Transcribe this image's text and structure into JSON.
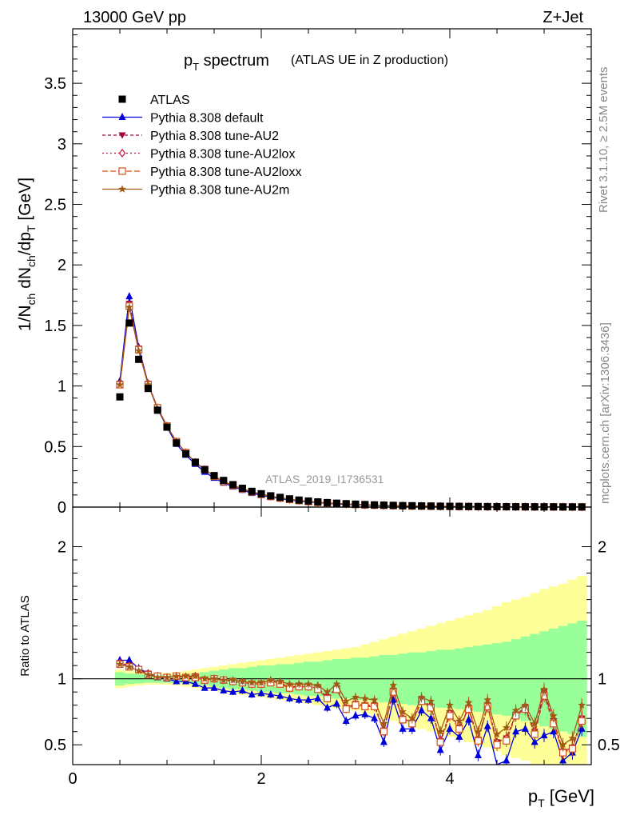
{
  "header": {
    "beam": "13000 GeV pp",
    "process": "Z+Jet"
  },
  "side_labels": {
    "rivet": "Rivet 3.1.10, ≥ 2.5M events",
    "mcplots": "mcplots.cern.ch [arXiv:1306.3436]"
  },
  "chart_data": [
    {
      "type": "line",
      "title": "p_T spectrum",
      "title_main": "p",
      "title_sub": "T",
      "title_rest": " spectrum",
      "title_note": "(ATLAS UE in Z production)",
      "ylabel": "1/N_ch dN_ch/dp_T [GeV]",
      "xlabel": "p_T [GeV]",
      "watermark": "ATLAS_2019_I1736531",
      "xlim": [
        0,
        5.5
      ],
      "ylim": [
        0,
        3.95
      ],
      "yticks": [
        0,
        0.5,
        1,
        1.5,
        2,
        2.5,
        3,
        3.5
      ],
      "ytick_labels": [
        "0",
        "0.5",
        "1",
        "1.5",
        "2",
        "2.5",
        "3",
        "3.5"
      ],
      "x": [
        0.5,
        0.6,
        0.7,
        0.8,
        0.9,
        1.0,
        1.1,
        1.2,
        1.3,
        1.4,
        1.5,
        1.6,
        1.7,
        1.8,
        1.9,
        2.0,
        2.1,
        2.2,
        2.3,
        2.4,
        2.5,
        2.6,
        2.7,
        2.8,
        2.9,
        3.0,
        3.1,
        3.2,
        3.3,
        3.4,
        3.5,
        3.6,
        3.7,
        3.8,
        3.9,
        4.0,
        4.1,
        4.2,
        4.3,
        4.4,
        4.5,
        4.6,
        4.7,
        4.8,
        4.9,
        5.0,
        5.1,
        5.2,
        5.3,
        5.4
      ],
      "series": [
        {
          "name": "ATLAS",
          "marker": "square",
          "color": "#000000",
          "values": [
            0.91,
            1.52,
            1.22,
            0.98,
            0.8,
            0.66,
            0.53,
            0.44,
            0.37,
            0.31,
            0.26,
            0.22,
            0.185,
            0.155,
            0.13,
            0.11,
            0.093,
            0.08,
            0.068,
            0.058,
            0.05,
            0.043,
            0.037,
            0.032,
            0.028,
            0.024,
            0.021,
            0.018,
            0.016,
            0.014,
            0.012,
            0.011,
            0.0095,
            0.0083,
            0.0073,
            0.0064,
            0.0056,
            0.0049,
            0.0043,
            0.0038,
            0.0034,
            0.003,
            0.0027,
            0.0024,
            0.0021,
            0.0019,
            0.0017,
            0.0015,
            0.0013,
            0.0012
          ]
        },
        {
          "name": "Pythia 8.308 default",
          "marker": "triangle-up",
          "color": "#0000dd",
          "dash": "",
          "values": [
            1.04,
            1.74,
            1.32,
            1.02,
            0.81,
            0.66,
            0.52,
            0.43,
            0.355,
            0.29,
            0.24,
            0.2,
            0.168,
            0.14,
            0.115,
            0.098,
            0.082,
            0.07,
            0.058,
            0.049,
            0.042,
            0.036,
            0.031,
            0.026,
            0.022,
            0.019,
            0.016,
            0.014,
            0.012,
            0.01,
            0.009,
            0.008,
            0.007,
            0.006,
            0.005,
            0.0045,
            0.004,
            0.0035,
            0.003,
            0.0027,
            0.0023,
            0.002,
            0.0018,
            0.0016,
            0.0014,
            0.0012,
            0.0011,
            0.001,
            0.0009,
            0.0008
          ]
        },
        {
          "name": "Pythia 8.308 tune-AU2",
          "marker": "triangle-down",
          "color": "#a0003c",
          "dash": "4,3",
          "values": [
            1.02,
            1.68,
            1.31,
            1.02,
            0.82,
            0.67,
            0.54,
            0.45,
            0.37,
            0.31,
            0.255,
            0.21,
            0.178,
            0.15,
            0.125,
            0.105,
            0.088,
            0.075,
            0.063,
            0.054,
            0.046,
            0.039,
            0.034,
            0.029,
            0.025,
            0.021,
            0.018,
            0.016,
            0.014,
            0.012,
            0.01,
            0.009,
            0.008,
            0.007,
            0.006,
            0.005,
            0.0045,
            0.004,
            0.0035,
            0.003,
            0.0027,
            0.0024,
            0.0021,
            0.0018,
            0.0016,
            0.0014,
            0.0013,
            0.0011,
            0.001,
            0.0009
          ]
        },
        {
          "name": "Pythia 8.308 tune-AU2lox",
          "marker": "diamond-open",
          "color": "#c0143c",
          "dash": "2,3",
          "values": [
            1.02,
            1.67,
            1.31,
            1.02,
            0.82,
            0.67,
            0.54,
            0.45,
            0.37,
            0.31,
            0.255,
            0.21,
            0.178,
            0.15,
            0.125,
            0.105,
            0.088,
            0.075,
            0.063,
            0.054,
            0.046,
            0.039,
            0.034,
            0.029,
            0.025,
            0.021,
            0.018,
            0.016,
            0.014,
            0.012,
            0.01,
            0.009,
            0.008,
            0.007,
            0.006,
            0.005,
            0.0045,
            0.004,
            0.0035,
            0.003,
            0.0027,
            0.0024,
            0.0021,
            0.0018,
            0.0016,
            0.0014,
            0.0013,
            0.0011,
            0.001,
            0.0009
          ]
        },
        {
          "name": "Pythia 8.308 tune-AU2loxx",
          "marker": "square-open",
          "color": "#d2501e",
          "dash": "7,3",
          "values": [
            1.01,
            1.66,
            1.3,
            1.01,
            0.82,
            0.67,
            0.54,
            0.45,
            0.37,
            0.31,
            0.255,
            0.21,
            0.178,
            0.15,
            0.125,
            0.105,
            0.088,
            0.075,
            0.063,
            0.054,
            0.046,
            0.039,
            0.034,
            0.029,
            0.025,
            0.021,
            0.018,
            0.016,
            0.014,
            0.012,
            0.01,
            0.009,
            0.008,
            0.007,
            0.006,
            0.005,
            0.0045,
            0.004,
            0.0035,
            0.003,
            0.0027,
            0.0024,
            0.0021,
            0.0018,
            0.0016,
            0.0014,
            0.0013,
            0.0011,
            0.001,
            0.0009
          ]
        },
        {
          "name": "Pythia 8.308 tune-AU2m",
          "marker": "star",
          "color": "#a05a14",
          "dash": "",
          "values": [
            1.01,
            1.65,
            1.29,
            1.01,
            0.81,
            0.67,
            0.54,
            0.45,
            0.37,
            0.31,
            0.256,
            0.212,
            0.18,
            0.152,
            0.127,
            0.107,
            0.09,
            0.077,
            0.065,
            0.055,
            0.047,
            0.04,
            0.035,
            0.03,
            0.026,
            0.022,
            0.019,
            0.016,
            0.014,
            0.012,
            0.011,
            0.009,
            0.008,
            0.007,
            0.006,
            0.0055,
            0.0048,
            0.0042,
            0.0037,
            0.0033,
            0.0029,
            0.0026,
            0.0023,
            0.002,
            0.0018,
            0.0016,
            0.0014,
            0.0012,
            0.0011,
            0.001
          ]
        }
      ]
    },
    {
      "type": "line",
      "ylabel": "Ratio to ATLAS",
      "xlim": [
        0,
        5.5
      ],
      "ylim": [
        0.35,
        2.3
      ],
      "yticks": [
        0.5,
        1,
        2
      ],
      "ytick_labels": [
        "0.5",
        "1",
        "2"
      ],
      "xticks": [
        0,
        2,
        4
      ],
      "xtick_labels": [
        "0",
        "2",
        "4"
      ],
      "band_green_halfwidth": [
        0.05,
        0.04,
        0.035,
        0.03,
        0.03,
        0.03,
        0.03,
        0.03,
        0.04,
        0.05,
        0.06,
        0.07,
        0.08,
        0.08,
        0.09,
        0.1,
        0.1,
        0.11,
        0.11,
        0.12,
        0.13,
        0.13,
        0.14,
        0.15,
        0.15,
        0.16,
        0.16,
        0.17,
        0.18,
        0.18,
        0.19,
        0.2,
        0.2,
        0.21,
        0.22,
        0.22,
        0.23,
        0.24,
        0.25,
        0.26,
        0.27,
        0.28,
        0.3,
        0.32,
        0.34,
        0.36,
        0.38,
        0.4,
        0.42,
        0.44
      ],
      "band_yellow_halfwidth": [
        0.07,
        0.06,
        0.05,
        0.045,
        0.045,
        0.045,
        0.05,
        0.06,
        0.07,
        0.08,
        0.09,
        0.1,
        0.11,
        0.12,
        0.13,
        0.14,
        0.15,
        0.16,
        0.17,
        0.18,
        0.19,
        0.2,
        0.21,
        0.22,
        0.23,
        0.24,
        0.26,
        0.28,
        0.3,
        0.32,
        0.34,
        0.36,
        0.38,
        0.4,
        0.42,
        0.44,
        0.46,
        0.48,
        0.5,
        0.52,
        0.55,
        0.58,
        0.6,
        0.62,
        0.65,
        0.68,
        0.7,
        0.72,
        0.75,
        0.78
      ],
      "series": [
        {
          "name": "Pythia 8.308 default",
          "values": [
            1.14,
            1.14,
            1.08,
            1.04,
            1.01,
            1.0,
            0.98,
            0.98,
            0.96,
            0.93,
            0.93,
            0.91,
            0.9,
            0.91,
            0.88,
            0.89,
            0.88,
            0.87,
            0.85,
            0.84,
            0.84,
            0.85,
            0.78,
            0.81,
            0.68,
            0.72,
            0.73,
            0.7,
            0.52,
            0.84,
            0.62,
            0.62,
            0.76,
            0.7,
            0.46,
            0.62,
            0.56,
            0.69,
            0.42,
            0.64,
            0.33,
            0.38,
            0.6,
            0.62,
            0.52,
            0.57,
            0.6,
            0.38,
            0.44,
            0.62
          ]
        },
        {
          "name": "Pythia 8.308 tune-AU2",
          "values": [
            1.12,
            1.1,
            1.07,
            1.04,
            1.02,
            1.01,
            1.02,
            1.01,
            1.02,
            0.99,
            1.0,
            0.99,
            0.98,
            0.97,
            0.96,
            0.96,
            0.98,
            0.97,
            0.93,
            0.95,
            0.94,
            0.93,
            0.86,
            0.93,
            0.78,
            0.81,
            0.8,
            0.8,
            0.61,
            0.91,
            0.7,
            0.67,
            0.84,
            0.79,
            0.53,
            0.74,
            0.63,
            0.78,
            0.54,
            0.8,
            0.52,
            0.55,
            0.73,
            0.78,
            0.6,
            0.9,
            0.68,
            0.45,
            0.48,
            0.7
          ]
        },
        {
          "name": "Pythia 8.308 tune-AU2lox",
          "values": [
            1.12,
            1.1,
            1.07,
            1.04,
            1.02,
            1.01,
            1.02,
            1.01,
            1.02,
            0.99,
            1.0,
            0.99,
            0.98,
            0.97,
            0.96,
            0.96,
            0.98,
            0.97,
            0.93,
            0.95,
            0.94,
            0.93,
            0.86,
            0.93,
            0.78,
            0.81,
            0.8,
            0.8,
            0.61,
            0.91,
            0.7,
            0.67,
            0.84,
            0.79,
            0.53,
            0.74,
            0.63,
            0.78,
            0.54,
            0.8,
            0.52,
            0.55,
            0.73,
            0.78,
            0.6,
            0.9,
            0.68,
            0.45,
            0.48,
            0.7
          ]
        },
        {
          "name": "Pythia 8.308 tune-AU2loxx",
          "values": [
            1.11,
            1.09,
            1.07,
            1.03,
            1.02,
            1.01,
            1.02,
            1.01,
            1.01,
            0.99,
            1.0,
            0.99,
            0.98,
            0.97,
            0.96,
            0.96,
            0.97,
            0.96,
            0.93,
            0.94,
            0.94,
            0.92,
            0.85,
            0.92,
            0.77,
            0.8,
            0.79,
            0.79,
            0.6,
            0.9,
            0.69,
            0.66,
            0.83,
            0.78,
            0.52,
            0.72,
            0.62,
            0.77,
            0.53,
            0.79,
            0.5,
            0.53,
            0.72,
            0.77,
            0.58,
            0.87,
            0.66,
            0.44,
            0.47,
            0.68
          ]
        },
        {
          "name": "Pythia 8.308 tune-AU2m",
          "values": [
            1.11,
            1.09,
            1.06,
            1.03,
            1.01,
            1.01,
            1.02,
            1.02,
            1.02,
            1.0,
            1.0,
            0.99,
            0.99,
            0.98,
            0.97,
            0.97,
            0.99,
            0.98,
            0.96,
            0.96,
            0.96,
            0.95,
            0.9,
            0.96,
            0.83,
            0.86,
            0.85,
            0.84,
            0.66,
            0.95,
            0.75,
            0.7,
            0.86,
            0.83,
            0.6,
            0.8,
            0.68,
            0.82,
            0.6,
            0.84,
            0.58,
            0.63,
            0.76,
            0.8,
            0.66,
            0.92,
            0.72,
            0.5,
            0.55,
            0.8
          ]
        }
      ]
    }
  ]
}
